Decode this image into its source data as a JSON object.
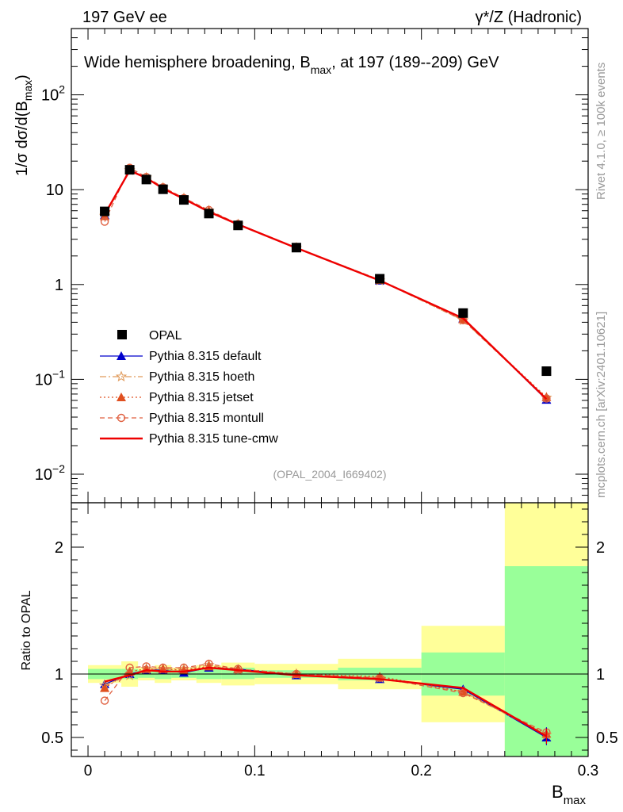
{
  "header": {
    "left": "197 GeV ee",
    "right": "γ*/Z (Hadronic)"
  },
  "side_labels": {
    "rivet": "Rivet 4.1.0, ≥ 100k events",
    "mcplots": "mcplots.cern.ch [arXiv:2401.10621]"
  },
  "chart_data": {
    "type": "line",
    "title": "Wide hemisphere broadening, Bmax, at 197 (189--209) GeV",
    "title_parts": {
      "main": "Wide hemisphere broadening, B",
      "sub": "max",
      "rest": ", at 197 (189--209) GeV"
    },
    "analysis_id": "(OPAL_2004_I669402)",
    "xlabel": {
      "main": "B",
      "sub": "max"
    },
    "ylabel": {
      "prefix": "1/σ   dσ/d(B",
      "sub": "max",
      "suffix": ")"
    },
    "ratio_ylabel": "Ratio to OPAL",
    "xlim": [
      -0.01,
      0.3
    ],
    "ylim_log": [
      0.005,
      500
    ],
    "ratio_ylim": [
      0.35,
      2.35
    ],
    "x_ticks": [
      "0",
      "0.1",
      "0.2",
      "0.3"
    ],
    "x_tick_values": [
      0,
      0.1,
      0.2,
      0.3
    ],
    "y_ticks": [
      {
        "value": 0.01,
        "base": "10",
        "exp": "−2"
      },
      {
        "value": 0.1,
        "base": "10",
        "exp": "−1"
      },
      {
        "value": 1,
        "base": "1",
        "exp": ""
      },
      {
        "value": 10,
        "base": "10",
        "exp": ""
      },
      {
        "value": 100,
        "base": "10",
        "exp": "2"
      }
    ],
    "ratio_ticks": [
      "0.5",
      "1",
      "2"
    ],
    "ratio_tick_values": [
      0.5,
      1,
      2
    ],
    "data": {
      "name": "OPAL",
      "x": [
        0.01,
        0.025,
        0.035,
        0.045,
        0.0575,
        0.0725,
        0.09,
        0.125,
        0.175,
        0.225,
        0.275
      ],
      "y": [
        5.9,
        16.2,
        12.8,
        10.1,
        7.8,
        5.6,
        4.2,
        2.45,
        1.15,
        0.5,
        0.122
      ]
    },
    "bins": [
      {
        "xlo": 0.0,
        "xhi": 0.02,
        "green": [
          0.96,
          1.04
        ],
        "yellow": [
          0.93,
          1.07
        ]
      },
      {
        "xlo": 0.02,
        "xhi": 0.03,
        "green": [
          0.96,
          1.04
        ],
        "yellow": [
          0.9,
          1.1
        ]
      },
      {
        "xlo": 0.03,
        "xhi": 0.04,
        "green": [
          0.97,
          1.03
        ],
        "yellow": [
          0.95,
          1.05
        ]
      },
      {
        "xlo": 0.04,
        "xhi": 0.05,
        "green": [
          0.96,
          1.04
        ],
        "yellow": [
          0.93,
          1.07
        ]
      },
      {
        "xlo": 0.05,
        "xhi": 0.065,
        "green": [
          0.97,
          1.03
        ],
        "yellow": [
          0.95,
          1.05
        ]
      },
      {
        "xlo": 0.065,
        "xhi": 0.08,
        "green": [
          0.96,
          1.04
        ],
        "yellow": [
          0.93,
          1.07
        ]
      },
      {
        "xlo": 0.08,
        "xhi": 0.1,
        "green": [
          0.96,
          1.05
        ],
        "yellow": [
          0.91,
          1.09
        ]
      },
      {
        "xlo": 0.1,
        "xhi": 0.15,
        "green": [
          0.97,
          1.03
        ],
        "yellow": [
          0.92,
          1.08
        ]
      },
      {
        "xlo": 0.15,
        "xhi": 0.2,
        "green": [
          0.95,
          1.05
        ],
        "yellow": [
          0.88,
          1.12
        ]
      },
      {
        "xlo": 0.2,
        "xhi": 0.25,
        "green": [
          0.83,
          1.17
        ],
        "yellow": [
          0.62,
          1.38
        ]
      },
      {
        "xlo": 0.25,
        "xhi": 0.3,
        "green": [
          0.35,
          1.85
        ],
        "yellow": [
          0.35,
          2.35
        ]
      }
    ],
    "series": [
      {
        "name": "Pythia 8.315 default",
        "color": "#0000cc",
        "dash": "",
        "marker": "triangle",
        "values": [
          5.4,
          16.3,
          13.2,
          10.3,
          7.9,
          5.9,
          4.35,
          2.42,
          1.1,
          0.44,
          0.061
        ],
        "ratio": [
          0.92,
          1.0,
          1.03,
          1.03,
          1.01,
          1.05,
          1.04,
          0.99,
          0.96,
          0.88,
          0.5
        ]
      },
      {
        "name": "Pythia 8.315 hoeth",
        "color": "#e09a5a",
        "dash": "8,3,2,3",
        "marker": "star",
        "values": [
          5.3,
          16.0,
          13.4,
          10.5,
          8.1,
          6.0,
          4.3,
          2.45,
          1.1,
          0.42,
          0.064
        ],
        "ratio": [
          0.91,
          0.99,
          1.04,
          1.04,
          1.04,
          1.07,
          1.03,
          1.0,
          0.97,
          0.86,
          0.52
        ]
      },
      {
        "name": "Pythia 8.315 jetset",
        "color": "#e05020",
        "dash": "2,3",
        "marker": "triangle",
        "values": [
          5.25,
          16.5,
          13.3,
          10.4,
          8.0,
          5.95,
          4.35,
          2.44,
          1.12,
          0.43,
          0.065
        ],
        "ratio": [
          0.89,
          1.02,
          1.04,
          1.04,
          1.03,
          1.06,
          1.04,
          1.0,
          0.98,
          0.86,
          0.53
        ]
      },
      {
        "name": "Pythia 8.315 montull",
        "color": "#e06040",
        "dash": "6,4",
        "marker": "circle",
        "values": [
          4.6,
          17.0,
          13.6,
          10.6,
          8.15,
          6.1,
          4.35,
          2.45,
          1.12,
          0.42,
          0.063
        ],
        "ratio": [
          0.79,
          1.05,
          1.06,
          1.05,
          1.05,
          1.08,
          1.04,
          1.0,
          0.97,
          0.85,
          0.54
        ]
      },
      {
        "name": "Pythia 8.315 tune-cmw",
        "color": "#ee0000",
        "dash": "",
        "marker": "none",
        "values": [
          5.5,
          15.9,
          13.3,
          10.3,
          8.0,
          5.85,
          4.3,
          2.43,
          1.1,
          0.44,
          0.062
        ],
        "ratio": [
          0.94,
          0.99,
          1.03,
          1.02,
          1.02,
          1.05,
          1.03,
          0.99,
          0.96,
          0.89,
          0.51
        ]
      }
    ]
  }
}
